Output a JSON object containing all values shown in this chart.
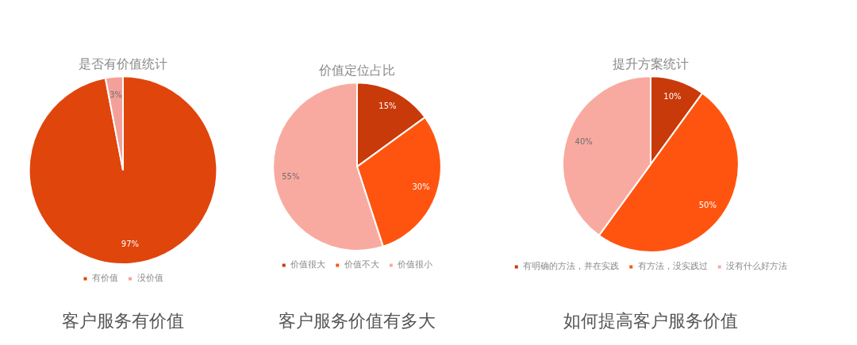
{
  "chart_data": [
    {
      "type": "pie",
      "title": "是否有价值统计",
      "categories": [
        "有价值",
        "没价值"
      ],
      "values": [
        97,
        3
      ],
      "colors": [
        "#e0450c",
        "#f4a09a"
      ],
      "value_labels": [
        "97%",
        "3%"
      ],
      "legend": "bottom",
      "annotations": [
        "客户服务有价值"
      ]
    },
    {
      "type": "pie",
      "title": "价值定位占比",
      "categories": [
        "价值很大",
        "价值不大",
        "价值很小"
      ],
      "values": [
        15,
        30,
        55
      ],
      "colors": [
        "#c83a0a",
        "#ff5410",
        "#f9aaa0"
      ],
      "value_labels": [
        "15%",
        "30%",
        "55%"
      ],
      "legend": "bottom",
      "annotations": [
        "客户服务价值有多大"
      ]
    },
    {
      "type": "pie",
      "title": "提升方案统计",
      "categories": [
        "有明确的方法，并在实践",
        "有方法，没实践过",
        "没有什么好方法"
      ],
      "values": [
        10,
        50,
        40
      ],
      "colors": [
        "#c83a0a",
        "#ff5410",
        "#f9aaa0"
      ],
      "value_labels": [
        "10%",
        "50%",
        "40%"
      ],
      "legend": "bottom",
      "annotations": [
        "如何提高客户服务价值"
      ]
    }
  ]
}
